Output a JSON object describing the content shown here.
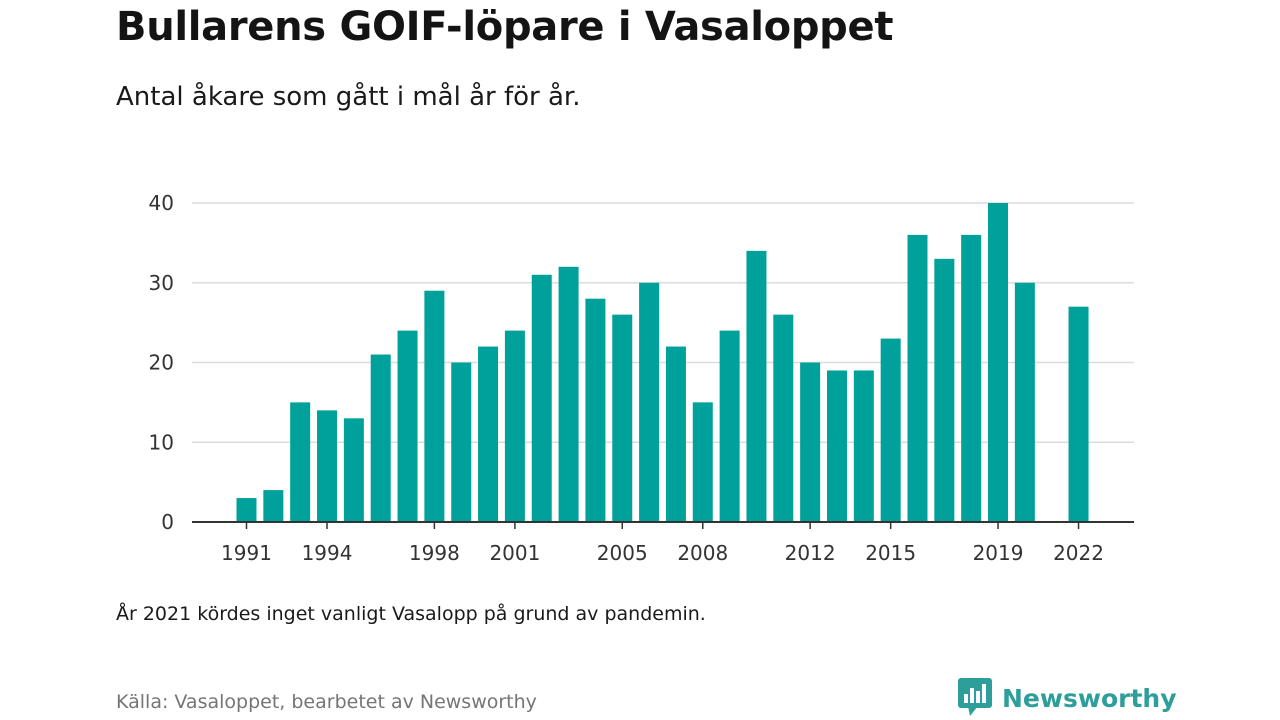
{
  "title": "Bullarens GOIF-löpare i Vasaloppet",
  "subtitle": "Antal åkare som gått i mål år för år.",
  "note": "År 2021 kördes inget vanligt Vasalopp på grund av pandemin.",
  "source": "Källa: Vasaloppet, bearbetet av Newsworthy",
  "brand": {
    "name": "Newsworthy",
    "icon": "newsworthy-logo-icon",
    "color": "#2d9e99"
  },
  "colors": {
    "bar": "#00a19a",
    "grid": "#dcdcdc",
    "axis": "#333333"
  },
  "chart_data": {
    "type": "bar",
    "title": "Bullarens GOIF-löpare i Vasaloppet",
    "xlabel": "",
    "ylabel": "",
    "ylim": [
      0,
      40
    ],
    "yticks": [
      0,
      10,
      20,
      30,
      40
    ],
    "xticks": [
      1991,
      1994,
      1998,
      2001,
      2005,
      2008,
      2012,
      2015,
      2019,
      2022
    ],
    "grid": true,
    "categories": [
      1990,
      1991,
      1992,
      1993,
      1994,
      1995,
      1996,
      1997,
      1998,
      1999,
      2000,
      2001,
      2002,
      2003,
      2004,
      2005,
      2006,
      2007,
      2008,
      2009,
      2010,
      2011,
      2012,
      2013,
      2014,
      2015,
      2016,
      2017,
      2018,
      2019,
      2020,
      2021,
      2022
    ],
    "values": [
      null,
      3,
      4,
      15,
      14,
      13,
      21,
      24,
      29,
      20,
      22,
      24,
      31,
      32,
      28,
      26,
      30,
      22,
      15,
      24,
      34,
      26,
      20,
      19,
      19,
      23,
      36,
      33,
      36,
      40,
      30,
      null,
      27
    ]
  }
}
